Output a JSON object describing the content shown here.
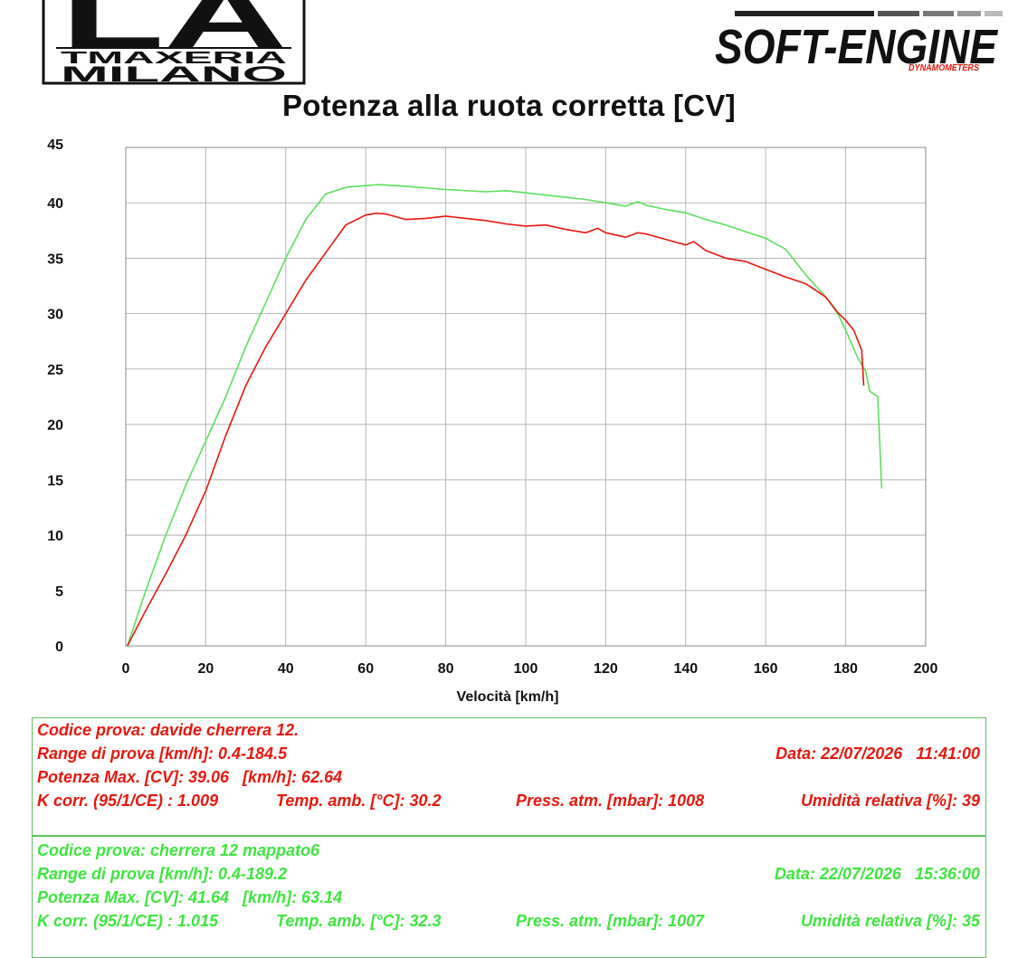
{
  "logos": {
    "left": {
      "line1": "LA",
      "line2": "TMAXERIA",
      "line3": "MILANO"
    },
    "right": {
      "main": "SOFT-ENGINE",
      "sub": "DYNAMOMETERS"
    }
  },
  "chart_data": {
    "type": "line",
    "title": "Potenza alla ruota corretta [CV]",
    "xlabel": "Velocità [km/h]",
    "ylabel": "",
    "xlim": [
      0,
      200
    ],
    "ylim": [
      0,
      45
    ],
    "xticks": [
      "0",
      "20",
      "40",
      "60",
      "80",
      "100",
      "120",
      "140",
      "160",
      "180",
      "200"
    ],
    "yticks": [
      "0",
      "5",
      "10",
      "15",
      "20",
      "25",
      "30",
      "35",
      "40",
      "45"
    ],
    "grid": true,
    "series": [
      {
        "color": "#e8170e",
        "x": [
          0.4,
          5,
          10,
          15,
          20,
          25,
          30,
          35,
          40,
          45,
          50,
          55,
          60,
          62.64,
          65,
          70,
          75,
          80,
          85,
          90,
          95,
          100,
          105,
          110,
          115,
          118,
          120,
          125,
          128,
          130,
          135,
          140,
          142,
          145,
          150,
          155,
          160,
          165,
          170,
          175,
          178,
          180,
          182,
          184,
          184.5
        ],
        "y": [
          0,
          3.2,
          6.5,
          10,
          14,
          19,
          23.5,
          27,
          30,
          33,
          35.5,
          38,
          38.9,
          39.06,
          39,
          38.5,
          38.6,
          38.8,
          38.6,
          38.4,
          38.1,
          37.9,
          38.0,
          37.6,
          37.3,
          37.7,
          37.3,
          36.9,
          37.3,
          37.2,
          36.7,
          36.2,
          36.5,
          35.7,
          35.0,
          34.7,
          34.0,
          33.3,
          32.7,
          31.5,
          30.1,
          29.4,
          28.5,
          26.7,
          23.5
        ]
      },
      {
        "color": "#5ce05c",
        "x": [
          0.4,
          5,
          10,
          15,
          20,
          25,
          30,
          35,
          40,
          45,
          50,
          55,
          60,
          63.14,
          70,
          80,
          90,
          95,
          100,
          105,
          110,
          115,
          120,
          125,
          128,
          130,
          135,
          140,
          145,
          150,
          155,
          160,
          165,
          170,
          175,
          178,
          180,
          183,
          185,
          186,
          188,
          189
        ],
        "y": [
          0,
          5,
          10,
          14.5,
          18.5,
          22.5,
          27,
          31,
          35,
          38.5,
          40.8,
          41.4,
          41.55,
          41.64,
          41.5,
          41.2,
          41.0,
          41.1,
          40.9,
          40.7,
          40.5,
          40.3,
          40.0,
          39.7,
          40.1,
          39.8,
          39.4,
          39.1,
          38.5,
          38.0,
          37.4,
          36.8,
          35.8,
          33.5,
          31.5,
          30.0,
          28.5,
          26.0,
          24.8,
          23.0,
          22.5,
          14.2
        ]
      }
    ]
  },
  "tests": [
    {
      "codice": "Codice prova: davide cherrera 12.",
      "range": "Range di prova [km/h]: 0.4-184.5",
      "data": "Data: 22/07/2026   11:41:00",
      "potenza": "Potenza Max. [CV]: 39.06   [km/h]: 62.64",
      "kcorr": "K corr. (95/1/CE) : 1.009",
      "temp": "Temp. amb. [°C]: 30.2",
      "press": "Press. atm. [mbar]: 1008",
      "umid": "Umidità relativa [%]: 39"
    },
    {
      "codice": "Codice prova: cherrera 12 mappato6",
      "range": "Range di prova [km/h]: 0.4-189.2",
      "data": "Data: 22/07/2026   15:36:00",
      "potenza": "Potenza Max. [CV]: 41.64   [km/h]: 63.14",
      "kcorr": "K corr. (95/1/CE) : 1.015",
      "temp": "Temp. amb. [°C]: 32.3",
      "press": "Press. atm. [mbar]: 1007",
      "umid": "Umidità relativa [%]: 35"
    }
  ]
}
